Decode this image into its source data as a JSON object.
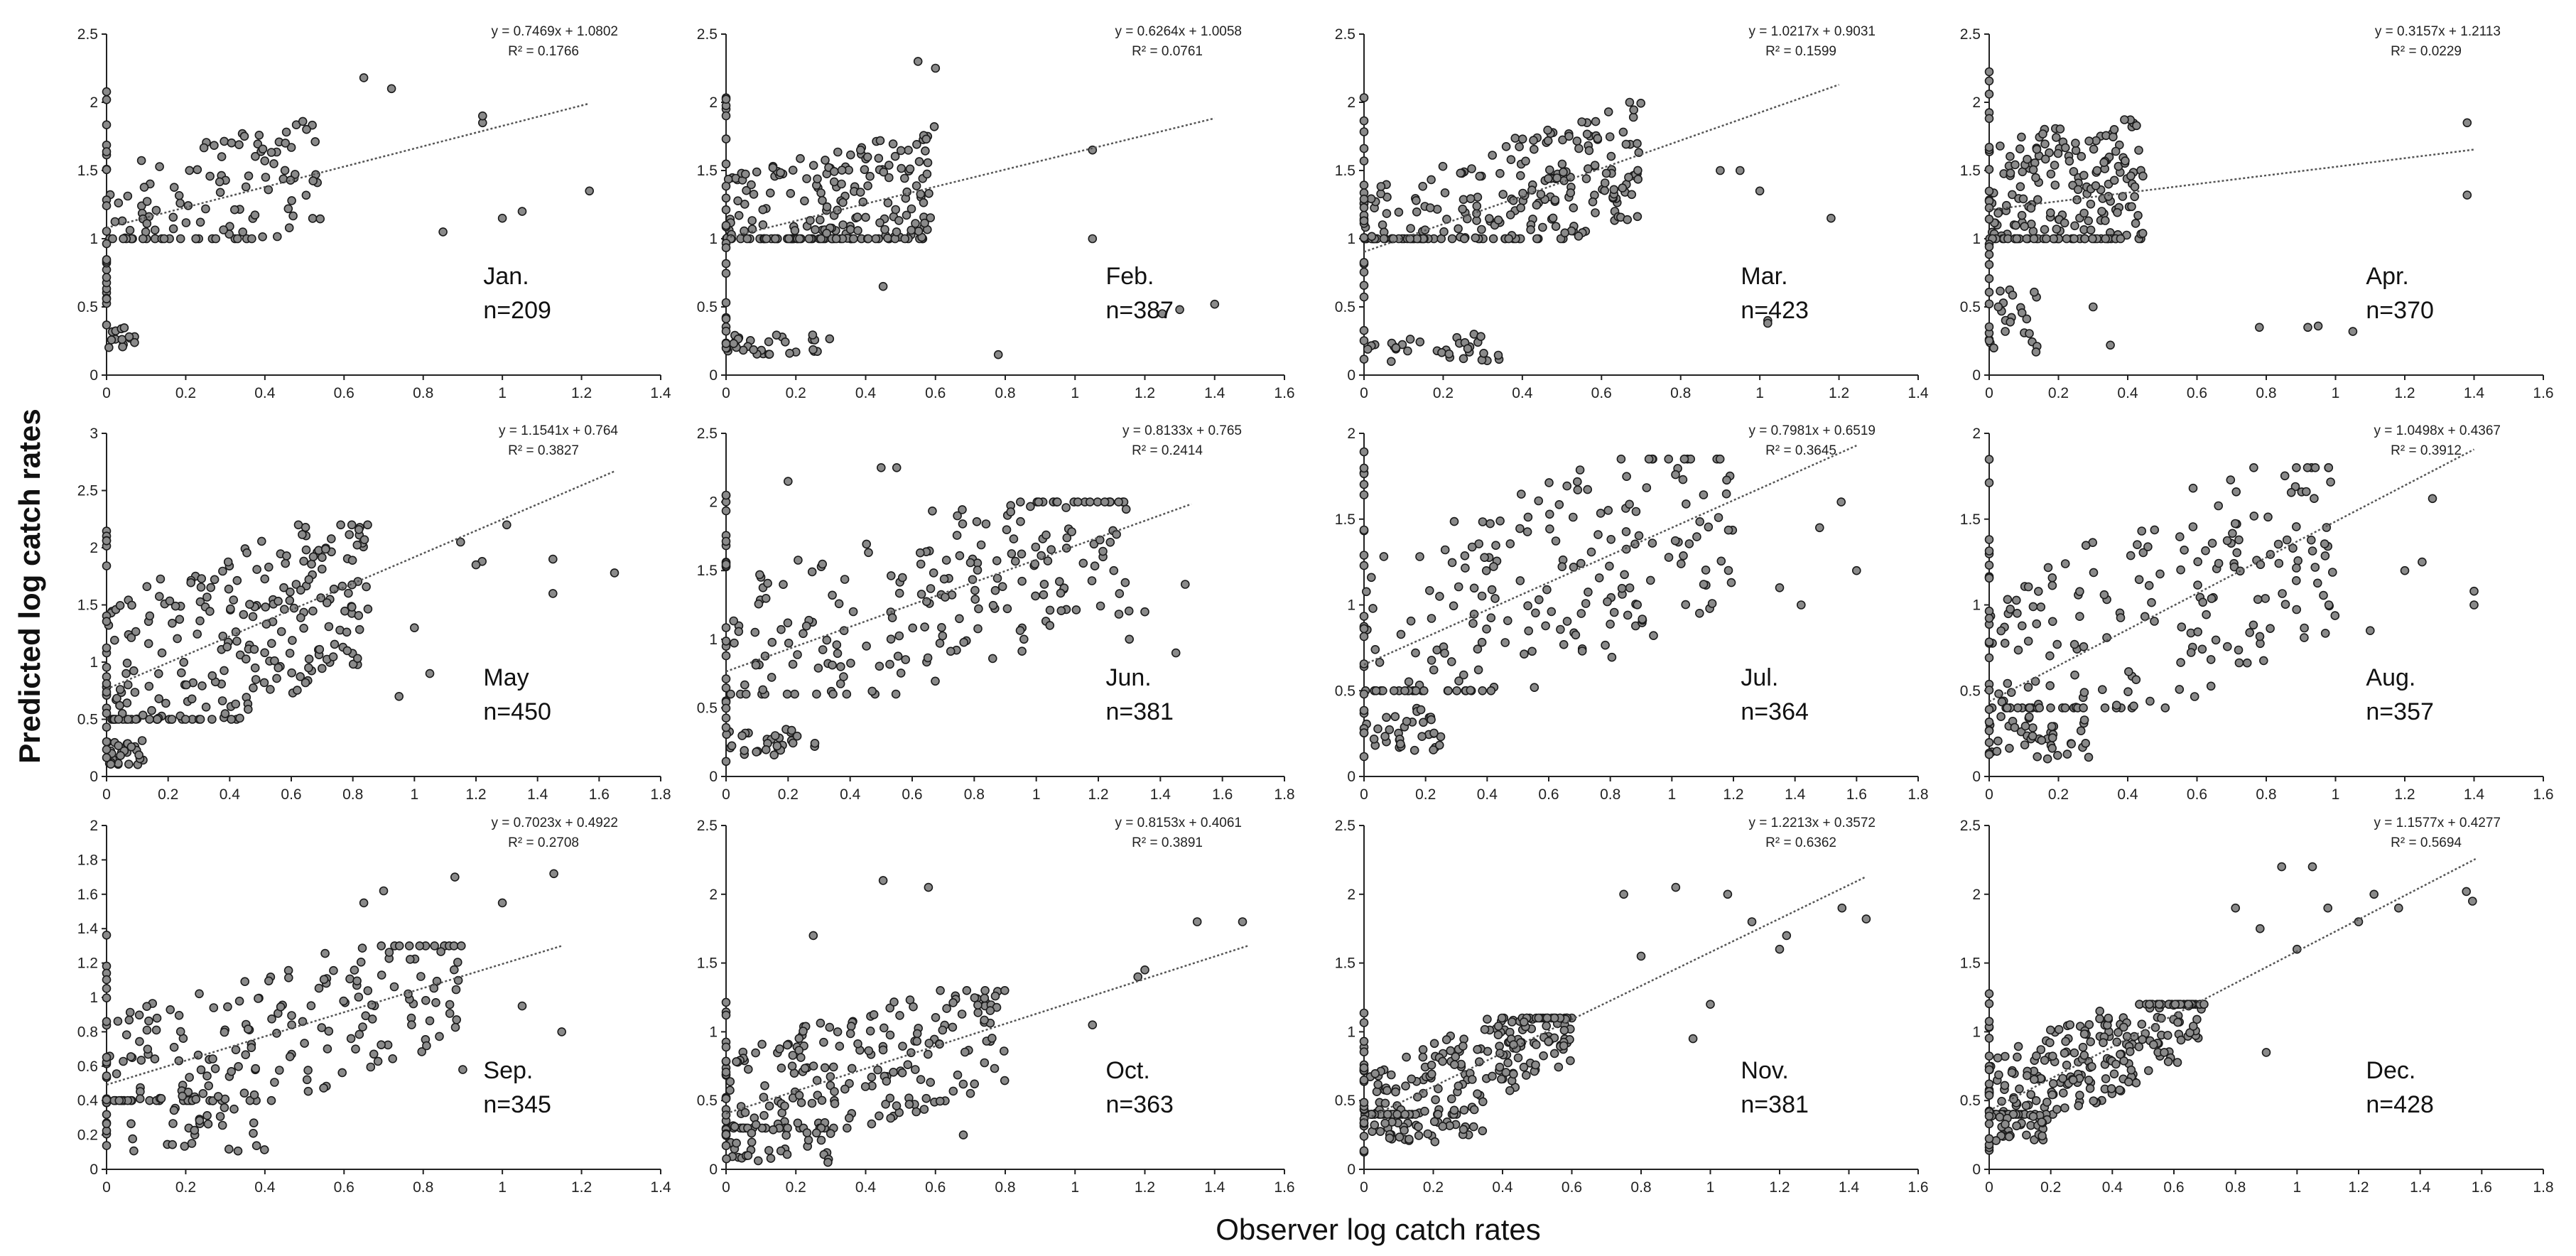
{
  "figure": {
    "ylabel": "Predicted log catch rates",
    "xlabel": "Observer log catch rates"
  },
  "colors": {
    "point_fill": "#8a8a8a",
    "point_stroke": "#1a1a1a",
    "axis": "#222222",
    "trend": "#555555"
  },
  "chart_data": [
    {
      "type": "scatter",
      "month": "Jan.",
      "n_label": "n=209",
      "n": 209,
      "xlim": [
        0,
        1.4
      ],
      "ylim": [
        0,
        2.5
      ],
      "xticks": [
        "0",
        "0.2",
        "0.4",
        "0.6",
        "0.8",
        "1",
        "1.2",
        "1.4"
      ],
      "yticks": [
        "0",
        "0.5",
        "1",
        "1.5",
        "2",
        "2.5"
      ],
      "equation": "y = 0.7469x + 1.0802",
      "r2": "R² = 0.1766",
      "slope": 0.7469,
      "intercept": 1.0802,
      "trend_x": [
        0,
        1.22
      ],
      "cluster": {
        "x": [
          0,
          0.55
        ],
        "y": [
          1.0,
          2.0
        ]
      },
      "low_cluster": {
        "x": [
          0,
          0.08
        ],
        "y": [
          0.2,
          0.35
        ],
        "count": 14
      },
      "outliers": [
        [
          1.0,
          1.15
        ],
        [
          1.05,
          1.2
        ],
        [
          0.95,
          1.85
        ],
        [
          0.95,
          1.9
        ],
        [
          1.22,
          1.35
        ],
        [
          0.85,
          1.05
        ],
        [
          0.65,
          2.18
        ],
        [
          0.72,
          2.1
        ]
      ]
    },
    {
      "type": "scatter",
      "month": "Feb.",
      "n_label": "n=387",
      "n": 387,
      "xlim": [
        0,
        1.6
      ],
      "ylim": [
        0,
        2.5
      ],
      "xticks": [
        "0",
        "0.2",
        "0.4",
        "0.6",
        "0.8",
        "1",
        "1.2",
        "1.4",
        "1.6"
      ],
      "yticks": [
        "0",
        "0.5",
        "1",
        "1.5",
        "2",
        "2.5"
      ],
      "equation": "y = 0.6264x + 1.0058",
      "r2": "R² = 0.0761",
      "slope": 0.6264,
      "intercept": 1.0058,
      "trend_x": [
        0,
        1.4
      ],
      "cluster": {
        "x": [
          0,
          0.6
        ],
        "y": [
          1.0,
          2.0
        ]
      },
      "low_cluster": {
        "x": [
          0,
          0.35
        ],
        "y": [
          0.15,
          0.3
        ],
        "count": 30
      },
      "outliers": [
        [
          1.05,
          1.65
        ],
        [
          1.05,
          1.0
        ],
        [
          1.25,
          0.45
        ],
        [
          1.3,
          0.48
        ],
        [
          1.4,
          0.52
        ],
        [
          0.78,
          0.15
        ],
        [
          0.55,
          2.3
        ],
        [
          0.6,
          2.25
        ],
        [
          0.45,
          0.65
        ]
      ]
    },
    {
      "type": "scatter",
      "month": "Mar.",
      "n_label": "n=423",
      "n": 423,
      "xlim": [
        0,
        1.4
      ],
      "ylim": [
        0,
        2.5
      ],
      "xticks": [
        "0",
        "0.2",
        "0.4",
        "0.6",
        "0.8",
        "1",
        "1.2",
        "1.4"
      ],
      "yticks": [
        "0",
        "0.5",
        "1",
        "1.5",
        "2",
        "2.5"
      ],
      "equation": "y = 1.0217x + 0.9031",
      "r2": "R² = 0.1599",
      "slope": 1.0217,
      "intercept": 0.9031,
      "trend_x": [
        0,
        1.2
      ],
      "cluster": {
        "x": [
          0,
          0.7
        ],
        "y": [
          1.0,
          2.0
        ]
      },
      "low_cluster": {
        "x": [
          0,
          0.35
        ],
        "y": [
          0.1,
          0.3
        ],
        "count": 32
      },
      "outliers": [
        [
          1.02,
          0.4
        ],
        [
          1.02,
          0.38
        ],
        [
          1.18,
          1.15
        ],
        [
          1.0,
          1.35
        ],
        [
          0.95,
          1.5
        ],
        [
          0.9,
          1.5
        ]
      ]
    },
    {
      "type": "scatter",
      "month": "Apr.",
      "n_label": "n=370",
      "n": 370,
      "xlim": [
        0,
        1.6
      ],
      "ylim": [
        0,
        2.5
      ],
      "xticks": [
        "0",
        "0.2",
        "0.4",
        "0.6",
        "0.8",
        "1",
        "1.2",
        "1.4",
        "1.6"
      ],
      "yticks": [
        "0",
        "0.5",
        "1",
        "1.5",
        "2",
        "2.5"
      ],
      "equation": "y = 0.3157x + 1.2113",
      "r2": "R² = 0.0229",
      "slope": 0.3157,
      "intercept": 1.2113,
      "trend_x": [
        0,
        1.4
      ],
      "cluster": {
        "x": [
          0,
          0.45
        ],
        "y": [
          1.0,
          2.2
        ]
      },
      "low_cluster": {
        "x": [
          0,
          0.15
        ],
        "y": [
          0.1,
          0.7
        ],
        "count": 22
      },
      "outliers": [
        [
          1.38,
          1.85
        ],
        [
          1.38,
          1.32
        ],
        [
          1.05,
          0.32
        ],
        [
          0.92,
          0.35
        ],
        [
          0.95,
          0.36
        ],
        [
          0.78,
          0.35
        ],
        [
          0.35,
          0.22
        ],
        [
          0.3,
          0.5
        ]
      ]
    },
    {
      "type": "scatter",
      "month": "May",
      "n_label": "n=450",
      "n": 450,
      "xlim": [
        0,
        1.8
      ],
      "ylim": [
        0,
        3
      ],
      "xticks": [
        "0",
        "0.2",
        "0.4",
        "0.6",
        "0.8",
        "1",
        "1.2",
        "1.4",
        "1.6",
        "1.8"
      ],
      "yticks": [
        "0",
        "0.5",
        "1",
        "1.5",
        "2",
        "2.5",
        "3"
      ],
      "equation": "y = 1.1541x + 0.764",
      "r2": "R² = 0.3827",
      "slope": 1.1541,
      "intercept": 0.764,
      "trend_x": [
        0,
        1.65
      ],
      "cluster": {
        "x": [
          0,
          0.85
        ],
        "y": [
          0.5,
          2.2
        ]
      },
      "low_cluster": {
        "x": [
          0,
          0.12
        ],
        "y": [
          0.1,
          0.35
        ],
        "count": 26
      },
      "outliers": [
        [
          1.45,
          1.6
        ],
        [
          1.45,
          1.9
        ],
        [
          1.65,
          1.78
        ],
        [
          1.3,
          2.2
        ],
        [
          1.15,
          2.05
        ],
        [
          1.22,
          1.88
        ],
        [
          1.0,
          1.3
        ],
        [
          0.95,
          0.7
        ],
        [
          1.2,
          1.85
        ],
        [
          1.05,
          0.9
        ]
      ]
    },
    {
      "type": "scatter",
      "month": "Jun.",
      "n_label": "n=381",
      "n": 381,
      "xlim": [
        0,
        1.8
      ],
      "ylim": [
        0,
        2.5
      ],
      "xticks": [
        "0",
        "0.2",
        "0.4",
        "0.6",
        "0.8",
        "1",
        "1.2",
        "1.4",
        "1.6",
        "1.8"
      ],
      "yticks": [
        "0",
        "0.5",
        "1",
        "1.5",
        "2",
        "2.5"
      ],
      "equation": "y = 0.8133x + 0.765",
      "r2": "R² = 0.2414",
      "slope": 0.8133,
      "intercept": 0.765,
      "trend_x": [
        0,
        1.5
      ],
      "cluster": {
        "x": [
          0,
          1.3
        ],
        "y": [
          0.6,
          2.0
        ]
      },
      "low_cluster": {
        "x": [
          0,
          0.3
        ],
        "y": [
          0.15,
          0.35
        ],
        "count": 30
      },
      "outliers": [
        [
          1.45,
          0.9
        ],
        [
          1.48,
          1.4
        ],
        [
          1.3,
          1.0
        ],
        [
          1.25,
          1.5
        ],
        [
          1.35,
          1.2
        ],
        [
          0.55,
          2.25
        ],
        [
          0.5,
          2.25
        ],
        [
          0.2,
          2.15
        ]
      ]
    },
    {
      "type": "scatter",
      "month": "Jul.",
      "n_label": "n=364",
      "n": 364,
      "xlim": [
        0,
        1.8
      ],
      "ylim": [
        0,
        2
      ],
      "xticks": [
        "0",
        "0.2",
        "0.4",
        "0.6",
        "0.8",
        "1",
        "1.2",
        "1.4",
        "1.6",
        "1.8"
      ],
      "yticks": [
        "0",
        "0.5",
        "1",
        "1.5",
        "2"
      ],
      "equation": "y = 0.7981x + 0.6519",
      "r2": "R² = 0.3645",
      "slope": 0.7981,
      "intercept": 0.6519,
      "trend_x": [
        0,
        1.6
      ],
      "cluster": {
        "x": [
          0,
          1.2
        ],
        "y": [
          0.5,
          1.85
        ]
      },
      "low_cluster": {
        "x": [
          0,
          0.25
        ],
        "y": [
          0.15,
          0.4
        ],
        "count": 34
      },
      "outliers": [
        [
          1.6,
          1.2
        ],
        [
          1.55,
          1.6
        ],
        [
          1.42,
          1.0
        ],
        [
          1.48,
          1.45
        ],
        [
          1.35,
          1.1
        ]
      ]
    },
    {
      "type": "scatter",
      "month": "Aug.",
      "n_label": "n=357",
      "n": 357,
      "xlim": [
        0,
        1.6
      ],
      "ylim": [
        0,
        2
      ],
      "xticks": [
        "0",
        "0.2",
        "0.4",
        "0.6",
        "0.8",
        "1",
        "1.2",
        "1.4",
        "1.6"
      ],
      "yticks": [
        "0",
        "0.5",
        "1",
        "1.5",
        "2"
      ],
      "equation": "y = 1.0498x + 0.4367",
      "r2": "R² = 0.3912",
      "slope": 1.0498,
      "intercept": 0.4367,
      "trend_x": [
        0,
        1.4
      ],
      "cluster": {
        "x": [
          0,
          1.0
        ],
        "y": [
          0.4,
          1.8
        ]
      },
      "low_cluster": {
        "x": [
          0,
          0.3
        ],
        "y": [
          0.1,
          0.35
        ],
        "count": 40
      },
      "outliers": [
        [
          1.4,
          1.08
        ],
        [
          1.4,
          1.0
        ],
        [
          1.2,
          1.2
        ],
        [
          1.25,
          1.25
        ],
        [
          1.28,
          1.62
        ],
        [
          1.1,
          0.85
        ]
      ]
    },
    {
      "type": "scatter",
      "month": "Sep.",
      "n_label": "n=345",
      "n": 345,
      "xlim": [
        0,
        1.4
      ],
      "ylim": [
        0,
        2
      ],
      "xticks": [
        "0",
        "0.2",
        "0.4",
        "0.6",
        "0.8",
        "1",
        "1.2",
        "1.4"
      ],
      "yticks": [
        "0",
        "0.2",
        "0.4",
        "0.6",
        "0.8",
        "1",
        "1.2",
        "1.4",
        "1.6",
        "1.8",
        "2"
      ],
      "equation": "y = 0.7023x + 0.4922",
      "r2": "R² = 0.2708",
      "slope": 0.7023,
      "intercept": 0.4922,
      "trend_x": [
        0,
        1.15
      ],
      "cluster": {
        "x": [
          0,
          0.9
        ],
        "y": [
          0.4,
          1.3
        ]
      },
      "low_cluster": {
        "x": [
          0.05,
          0.4
        ],
        "y": [
          0.1,
          0.45
        ],
        "count": 36
      },
      "outliers": [
        [
          1.13,
          1.72
        ],
        [
          1.15,
          0.8
        ],
        [
          0.88,
          1.7
        ],
        [
          0.9,
          0.58
        ],
        [
          1.05,
          0.95
        ],
        [
          1.0,
          1.55
        ],
        [
          0.7,
          1.62
        ],
        [
          0.65,
          1.55
        ]
      ]
    },
    {
      "type": "scatter",
      "month": "Oct.",
      "n_label": "n=363",
      "n": 363,
      "xlim": [
        0,
        1.6
      ],
      "ylim": [
        0,
        2.5
      ],
      "xticks": [
        "0",
        "0.2",
        "0.4",
        "0.6",
        "0.8",
        "1",
        "1.2",
        "1.4",
        "1.6"
      ],
      "yticks": [
        "0",
        "0.5",
        "1",
        "1.5",
        "2",
        "2.5"
      ],
      "equation": "y = 0.8153x + 0.4061",
      "r2": "R² = 0.3891",
      "slope": 0.8153,
      "intercept": 0.4061,
      "trend_x": [
        0,
        1.5
      ],
      "cluster": {
        "x": [
          0,
          0.8
        ],
        "y": [
          0.3,
          1.3
        ]
      },
      "low_cluster": {
        "x": [
          0,
          0.3
        ],
        "y": [
          0.05,
          0.35
        ],
        "count": 34
      },
      "outliers": [
        [
          1.35,
          1.8
        ],
        [
          1.48,
          1.8
        ],
        [
          1.18,
          1.4
        ],
        [
          1.2,
          1.45
        ],
        [
          1.05,
          1.05
        ],
        [
          0.45,
          2.1
        ],
        [
          0.58,
          2.05
        ],
        [
          0.25,
          1.7
        ],
        [
          0.68,
          0.25
        ]
      ]
    },
    {
      "type": "scatter",
      "month": "Nov.",
      "n_label": "n=381",
      "n": 381,
      "xlim": [
        0,
        1.6
      ],
      "ylim": [
        0,
        2.5
      ],
      "xticks": [
        "0",
        "0.2",
        "0.4",
        "0.6",
        "0.8",
        "1",
        "1.2",
        "1.4",
        "1.6"
      ],
      "yticks": [
        "0",
        "0.5",
        "1",
        "1.5",
        "2",
        "2.5"
      ],
      "equation": "y = 1.2213x + 0.3572",
      "r2": "R² = 0.6362",
      "slope": 1.2213,
      "intercept": 0.3572,
      "trend_x": [
        0,
        1.45
      ],
      "cluster": {
        "x": [
          0,
          0.6
        ],
        "y": [
          0.4,
          1.1
        ]
      },
      "low_cluster": {
        "x": [
          0,
          0.35
        ],
        "y": [
          0.2,
          0.35
        ],
        "count": 36
      },
      "outliers": [
        [
          1.45,
          1.82
        ],
        [
          1.38,
          1.9
        ],
        [
          1.2,
          1.6
        ],
        [
          1.22,
          1.7
        ],
        [
          1.05,
          2.0
        ],
        [
          0.9,
          2.05
        ],
        [
          0.75,
          2.0
        ],
        [
          0.8,
          1.55
        ],
        [
          1.12,
          1.8
        ],
        [
          1.0,
          1.2
        ],
        [
          0.95,
          0.95
        ]
      ]
    },
    {
      "type": "scatter",
      "month": "Dec.",
      "n_label": "n=428",
      "n": 428,
      "xlim": [
        0,
        1.8
      ],
      "ylim": [
        0,
        2.5
      ],
      "xticks": [
        "0",
        "0.2",
        "0.4",
        "0.6",
        "0.8",
        "1",
        "1.2",
        "1.4",
        "1.6",
        "1.8"
      ],
      "yticks": [
        "0",
        "0.5",
        "1",
        "1.5",
        "2",
        "2.5"
      ],
      "equation": "y = 1.1577x + 0.4277",
      "r2": "R² = 0.5694",
      "slope": 1.1577,
      "intercept": 0.4277,
      "trend_x": [
        0,
        1.58
      ],
      "cluster": {
        "x": [
          0,
          0.7
        ],
        "y": [
          0.4,
          1.2
        ]
      },
      "low_cluster": {
        "x": [
          0,
          0.2
        ],
        "y": [
          0.2,
          0.4
        ],
        "count": 30
      },
      "outliers": [
        [
          1.57,
          1.95
        ],
        [
          1.55,
          2.02
        ],
        [
          1.33,
          1.9
        ],
        [
          1.25,
          2.0
        ],
        [
          1.2,
          1.8
        ],
        [
          1.1,
          1.9
        ],
        [
          1.05,
          2.2
        ],
        [
          0.95,
          2.2
        ],
        [
          1.0,
          1.6
        ],
        [
          0.8,
          1.9
        ],
        [
          0.88,
          1.75
        ],
        [
          0.9,
          0.85
        ]
      ]
    }
  ]
}
